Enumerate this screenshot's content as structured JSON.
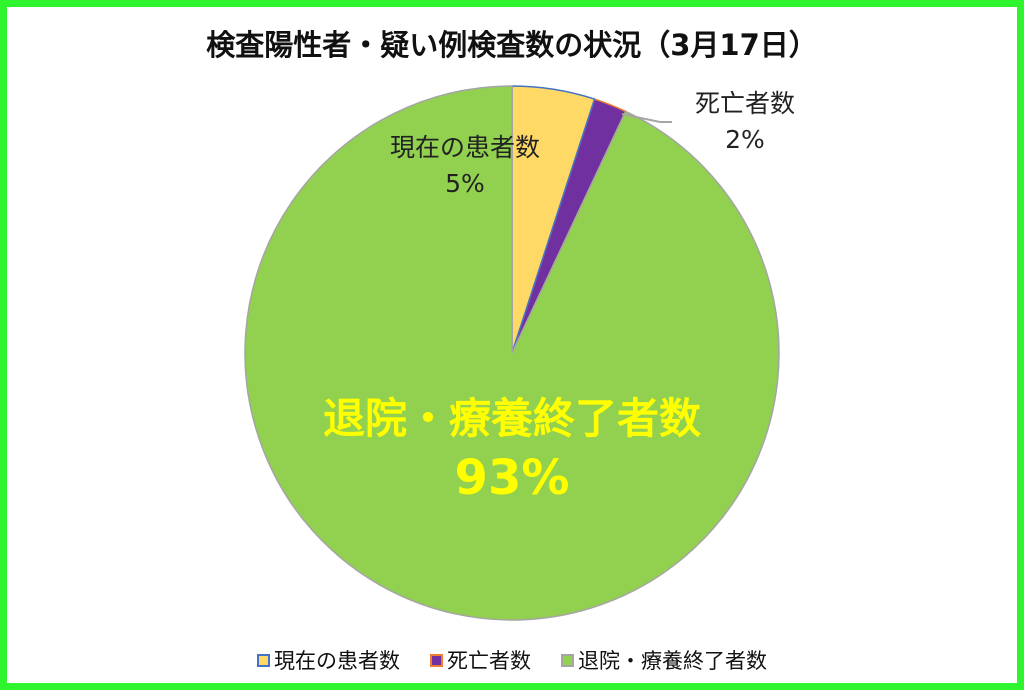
{
  "chart_data": {
    "type": "pie",
    "title": "検査陽性者・疑い例検査数の状況（3月17日）",
    "categories": [
      "現在の患者数",
      "死亡者数",
      "退院・療養終了者数"
    ],
    "values": [
      5,
      2,
      93
    ],
    "labels": [
      "5%",
      "2%",
      "93%"
    ],
    "colors": [
      "#ffd966",
      "#7030a0",
      "#92d050"
    ],
    "edge_colors": [
      "#4472c4",
      "#ed7d31",
      "#a5a5a5"
    ],
    "start_angle": "top, clockwise",
    "legend_position": "bottom",
    "frame_color": "#2ef52e"
  }
}
